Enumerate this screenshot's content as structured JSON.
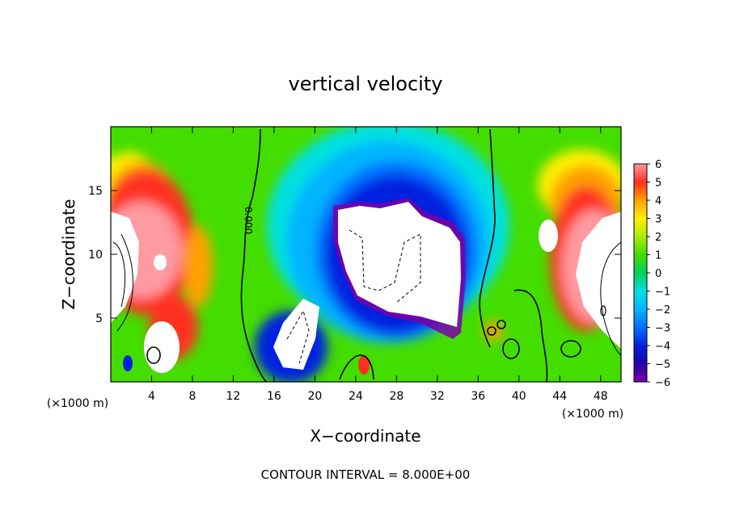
{
  "chart_data": {
    "type": "heatmap",
    "title": "vertical velocity",
    "xlabel": "X−coordinate",
    "ylabel": "Z−coordinate",
    "x_unit_left": "(×1000 m)",
    "x_unit_right": "(×1000 m)",
    "xlim": [
      0,
      50
    ],
    "ylim": [
      0,
      20
    ],
    "x_ticks": [
      4,
      8,
      12,
      16,
      20,
      24,
      28,
      32,
      36,
      40,
      44,
      48
    ],
    "y_ticks": [
      5,
      10,
      15
    ],
    "colorbar": {
      "range": [
        -6,
        6
      ],
      "ticks": [
        6,
        5,
        4,
        3,
        2,
        1,
        0,
        -1,
        -2,
        -3,
        -4,
        -5,
        -6
      ],
      "tick_labels": [
        "6",
        "5",
        "4",
        "3",
        "2",
        "1",
        "0",
        "−1",
        "−2",
        "−3",
        "−4",
        "−5",
        "−6"
      ],
      "colors": [
        "#7a00a6",
        "#2200a8",
        "#0020e0",
        "#0070ff",
        "#00b4ff",
        "#00e0e0",
        "#00d060",
        "#44dd00",
        "#aaee00",
        "#ffee00",
        "#ffa000",
        "#ff3020",
        "#ff9aa0"
      ]
    },
    "contour_label": "0.000",
    "footer": "CONTOUR INTERVAL = 8.000E+00"
  }
}
